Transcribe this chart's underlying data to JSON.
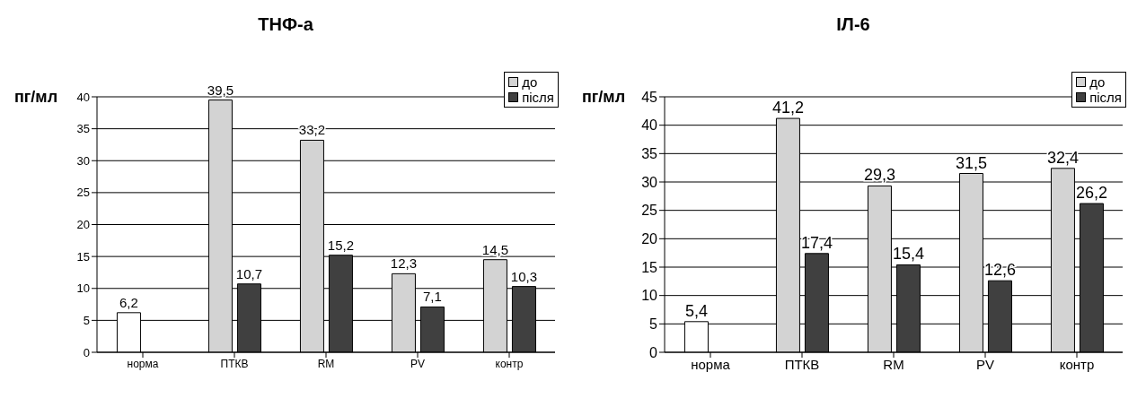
{
  "chart_data": [
    {
      "type": "bar",
      "title": "ТНФ-а",
      "ylabel": "пг/мл",
      "categories": [
        "норма",
        "ПТКВ",
        "RM",
        "PV",
        "контр"
      ],
      "ylim": [
        0,
        40
      ],
      "yticks": [
        0,
        5,
        10,
        15,
        20,
        25,
        30,
        35,
        40
      ],
      "grid": "y",
      "legend": "top right",
      "series": [
        {
          "name": "до",
          "color": "#d3d3d3",
          "colors": [
            "#ffffff",
            "#d3d3d3",
            "#d3d3d3",
            "#d3d3d3",
            "#d3d3d3"
          ],
          "values": [
            6.2,
            39.5,
            33.2,
            12.3,
            14.5
          ],
          "value_labels": [
            "6,2",
            "39,5",
            "33,2",
            "12,3",
            "14,5"
          ]
        },
        {
          "name": "після",
          "color": "#404040",
          "values": [
            null,
            10.7,
            15.2,
            7.1,
            10.3
          ],
          "value_labels": [
            null,
            "10,7",
            "15,2",
            "7,1",
            "10,3"
          ]
        }
      ]
    },
    {
      "type": "bar",
      "title": "ІЛ-6",
      "ylabel": "пг/мл",
      "categories": [
        "норма",
        "ПТКВ",
        "RM",
        "PV",
        "контр"
      ],
      "ylim": [
        0,
        45
      ],
      "yticks": [
        0,
        5,
        10,
        15,
        20,
        25,
        30,
        35,
        40,
        45
      ],
      "grid": "y",
      "legend": "top right",
      "series": [
        {
          "name": "до",
          "color": "#d3d3d3",
          "colors": [
            "#ffffff",
            "#d3d3d3",
            "#d3d3d3",
            "#d3d3d3",
            "#d3d3d3"
          ],
          "values": [
            5.4,
            41.2,
            29.3,
            31.5,
            32.4
          ],
          "value_labels": [
            "5,4",
            "41,2",
            "29,3",
            "31,5",
            "32,4"
          ]
        },
        {
          "name": "після",
          "color": "#404040",
          "values": [
            null,
            17.4,
            15.4,
            12.6,
            26.2
          ],
          "value_labels": [
            null,
            "17,4",
            "15,4",
            "12,6",
            "26,2"
          ]
        }
      ]
    }
  ]
}
